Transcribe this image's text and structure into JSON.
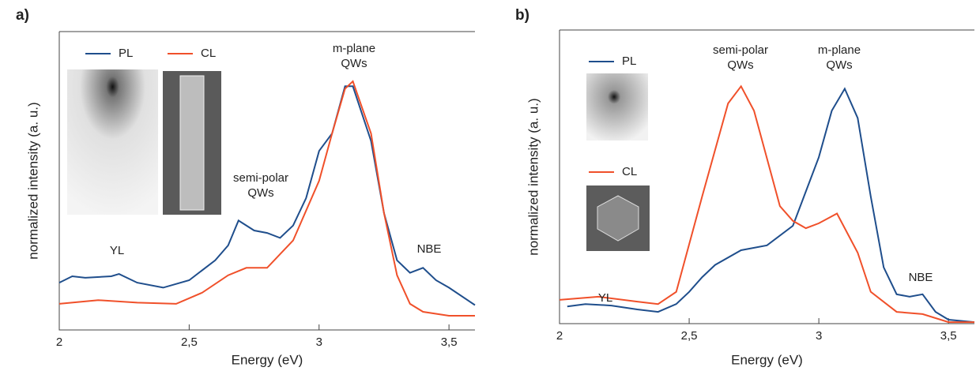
{
  "chart_data": [
    {
      "type": "line",
      "panel_label": "a)",
      "xlabel": "Energy (eV)",
      "ylabel": "normalized intensity (a. u.)",
      "xlim": [
        2,
        3.6
      ],
      "ylim": [
        0,
        1.2
      ],
      "xticks": [
        2,
        {
          "value": 2.5,
          "label": "2,5"
        },
        3,
        {
          "value": 3.5,
          "label": "3,5"
        }
      ],
      "annotations": [
        [
          "YL"
        ],
        [
          "semi-polar",
          "QWs"
        ],
        [
          "m-plane",
          "QWs"
        ],
        [
          "NBE"
        ]
      ],
      "series": [
        {
          "name": "PL",
          "color": "#1f4e8c",
          "x": [
            2.0,
            2.05,
            2.1,
            2.2,
            2.23,
            2.3,
            2.4,
            2.5,
            2.6,
            2.65,
            2.69,
            2.75,
            2.8,
            2.85,
            2.9,
            2.95,
            3.0,
            3.05,
            3.1,
            3.13,
            3.2,
            3.25,
            3.3,
            3.35,
            3.4,
            3.45,
            3.5,
            3.6
          ],
          "values": [
            0.19,
            0.216,
            0.21,
            0.216,
            0.225,
            0.19,
            0.17,
            0.2,
            0.28,
            0.34,
            0.44,
            0.4,
            0.39,
            0.37,
            0.42,
            0.53,
            0.72,
            0.79,
            0.98,
            0.98,
            0.76,
            0.47,
            0.28,
            0.23,
            0.25,
            0.2,
            0.17,
            0.1
          ]
        },
        {
          "name": "CL",
          "color": "#f0502a",
          "x": [
            2.0,
            2.15,
            2.3,
            2.45,
            2.55,
            2.65,
            2.72,
            2.8,
            2.9,
            3.0,
            3.05,
            3.1,
            3.13,
            3.2,
            3.25,
            3.3,
            3.35,
            3.4,
            3.5,
            3.6
          ],
          "values": [
            0.105,
            0.12,
            0.11,
            0.105,
            0.15,
            0.22,
            0.25,
            0.25,
            0.36,
            0.6,
            0.79,
            0.97,
            1.0,
            0.79,
            0.47,
            0.22,
            0.105,
            0.073,
            0.057,
            0.057
          ]
        }
      ]
    },
    {
      "type": "line",
      "panel_label": "b)",
      "xlabel": "Energy (eV)",
      "ylabel": "normalized intensity (a. u.)",
      "xlim": [
        2,
        3.6
      ],
      "ylim": [
        0,
        1.2
      ],
      "xticks": [
        2,
        {
          "value": 2.5,
          "label": "2,5"
        },
        3,
        {
          "value": 3.5,
          "label": "3,5"
        }
      ],
      "annotations": [
        [
          "YL"
        ],
        [
          "semi-polar",
          "QWs"
        ],
        [
          "m-plane",
          "QWs"
        ],
        [
          "NBE"
        ]
      ],
      "series": [
        {
          "name": "PL",
          "color": "#1f4e8c",
          "x": [
            2.03,
            2.1,
            2.2,
            2.3,
            2.38,
            2.45,
            2.5,
            2.55,
            2.6,
            2.7,
            2.8,
            2.9,
            3.0,
            3.05,
            3.1,
            3.15,
            3.2,
            3.25,
            3.3,
            3.35,
            3.4,
            3.45,
            3.5,
            3.6
          ],
          "values": [
            0.07,
            0.08,
            0.074,
            0.058,
            0.048,
            0.08,
            0.13,
            0.19,
            0.24,
            0.3,
            0.32,
            0.4,
            0.68,
            0.87,
            0.96,
            0.84,
            0.52,
            0.23,
            0.12,
            0.11,
            0.12,
            0.048,
            0.016,
            0.006
          ]
        },
        {
          "name": "CL",
          "color": "#f0502a",
          "x": [
            2.0,
            2.15,
            2.3,
            2.38,
            2.45,
            2.55,
            2.65,
            2.7,
            2.75,
            2.85,
            2.9,
            2.95,
            3.0,
            3.07,
            3.15,
            3.2,
            3.3,
            3.4,
            3.5,
            3.6
          ],
          "values": [
            0.097,
            0.11,
            0.09,
            0.08,
            0.13,
            0.52,
            0.9,
            0.97,
            0.87,
            0.48,
            0.42,
            0.39,
            0.41,
            0.45,
            0.29,
            0.13,
            0.048,
            0.039,
            0.006,
            0.006
          ]
        }
      ]
    }
  ]
}
